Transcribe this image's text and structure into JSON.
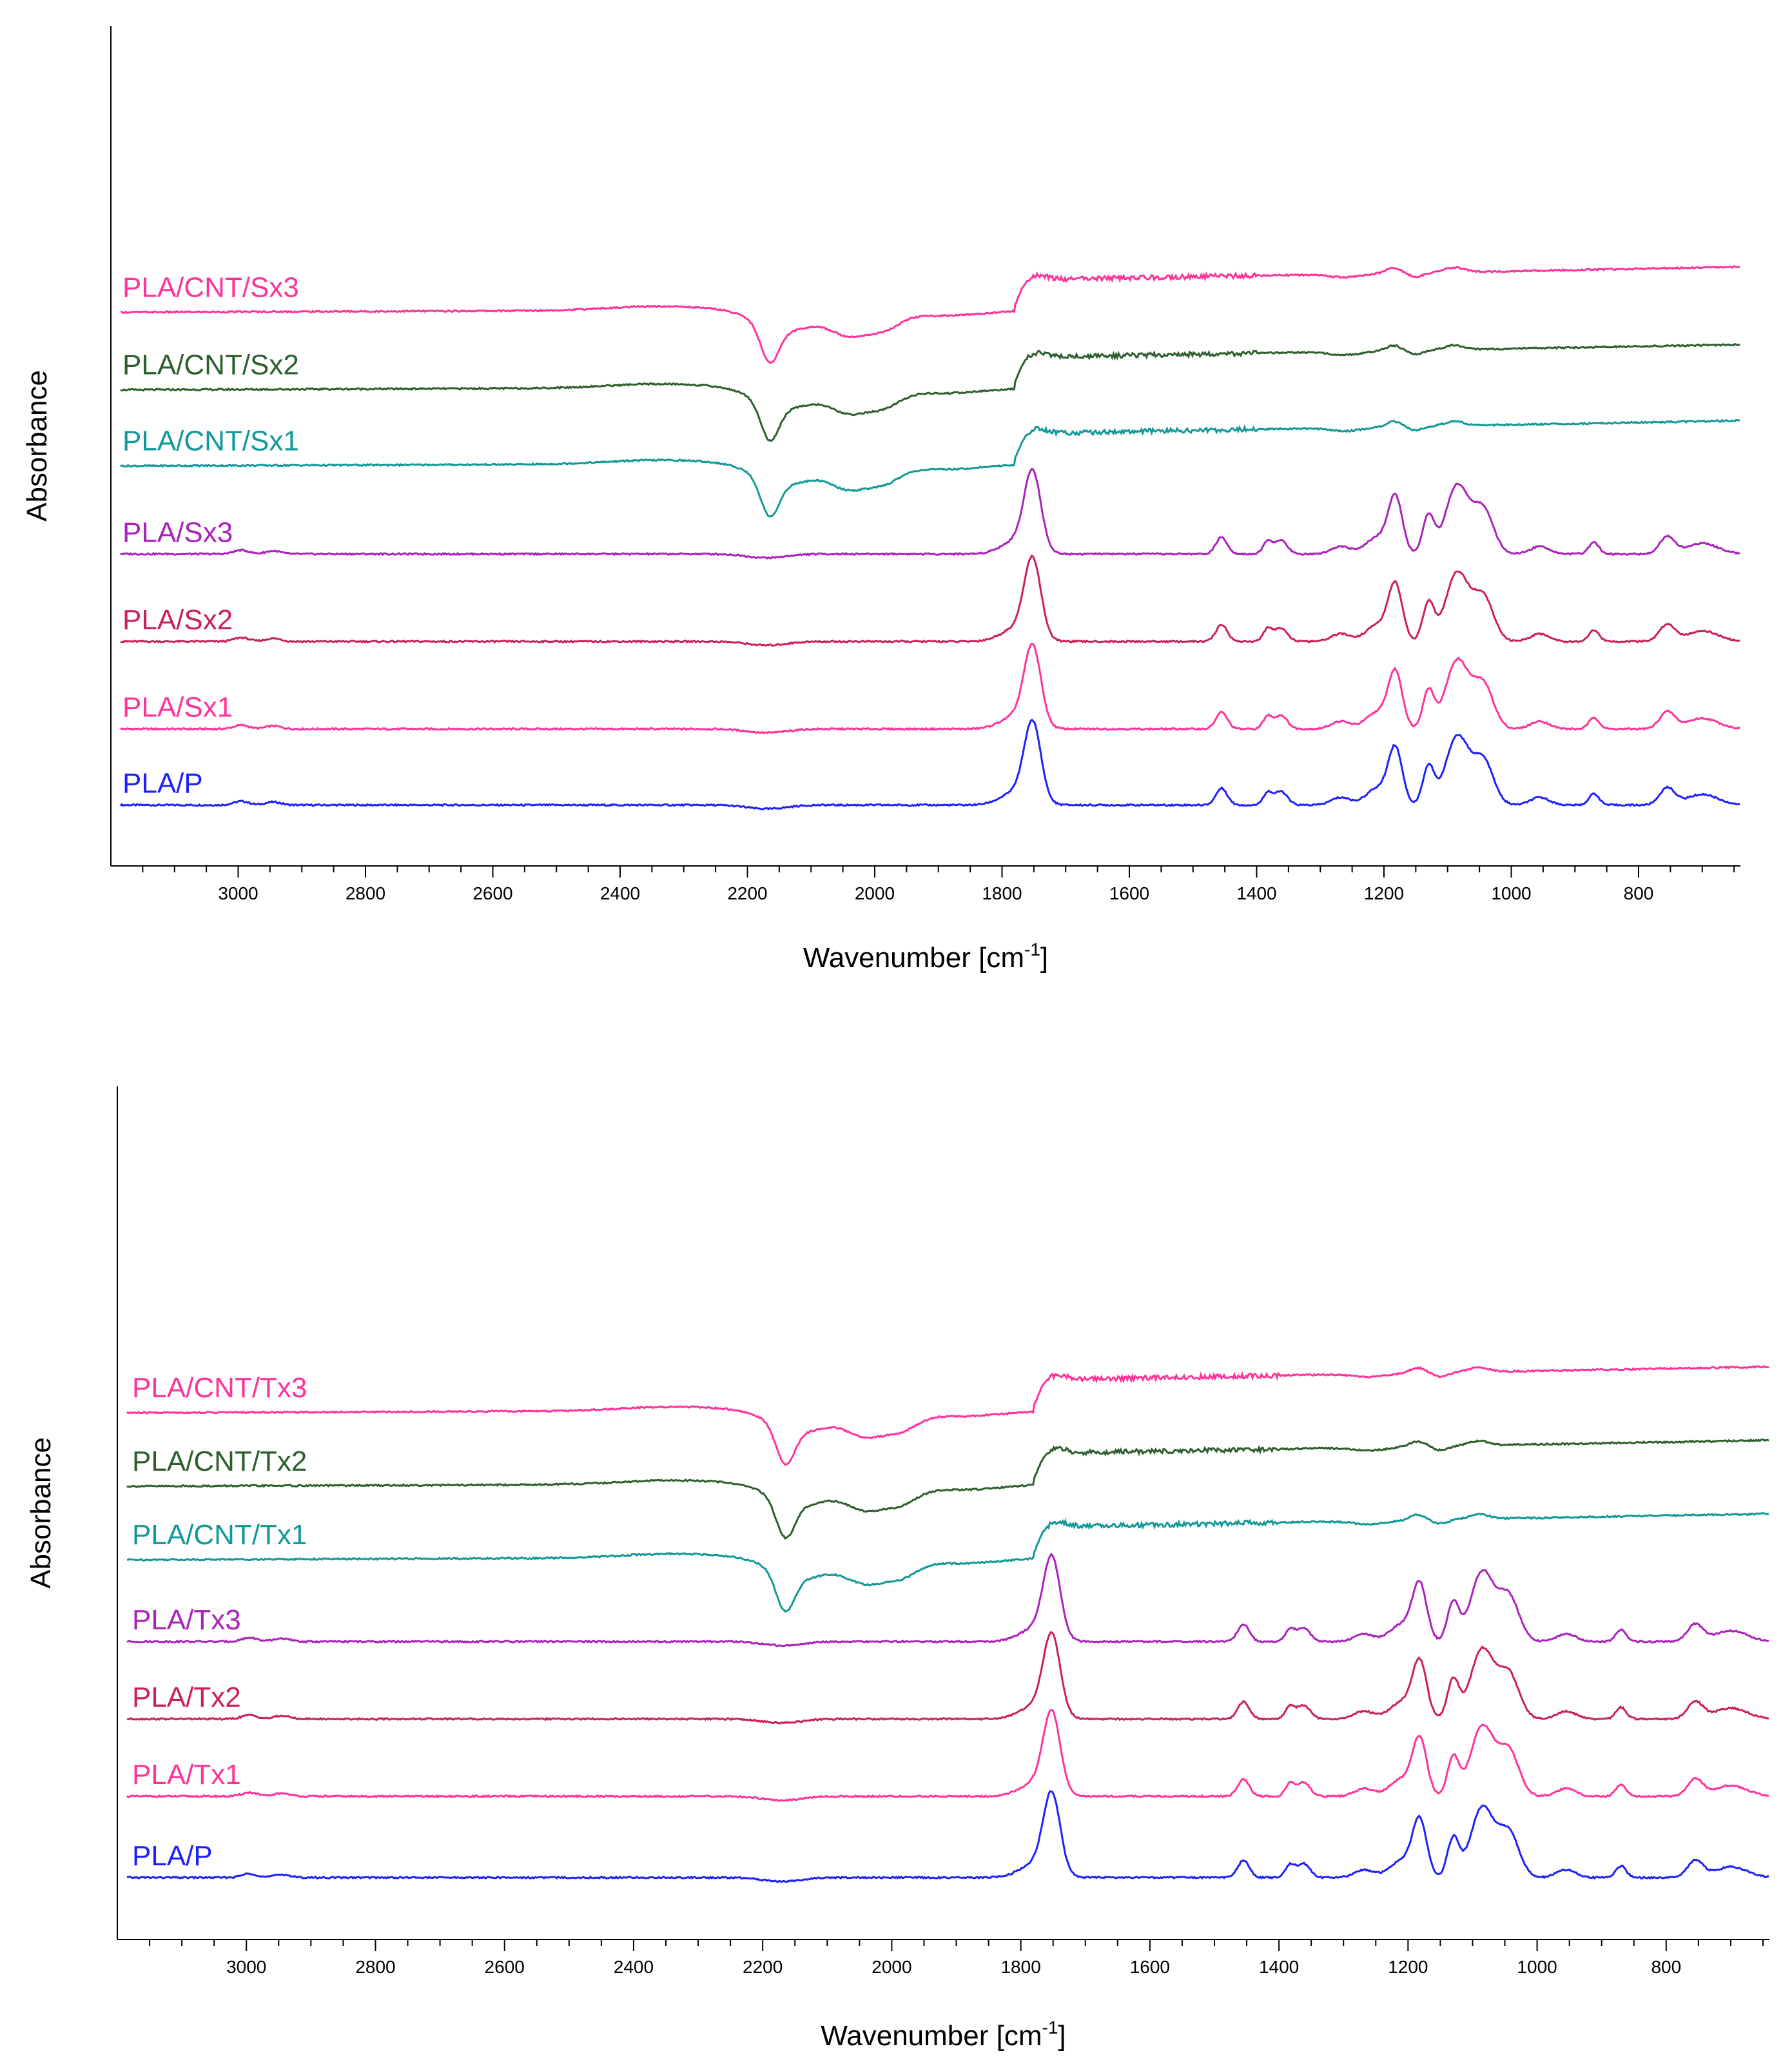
{
  "chart_data": [
    {
      "type": "line",
      "ylabel": "Absorbance",
      "xlabel": "Wavenumber [cm",
      "xlabel_sup": "-1",
      "xlabel_close": "]",
      "xlim": [
        3200,
        640
      ],
      "xticks": [
        3000,
        2800,
        2600,
        2400,
        2200,
        2000,
        1800,
        1600,
        1400,
        1200,
        1000,
        800
      ],
      "baselines": [
        0.8,
        1.8,
        2.95,
        4.1,
        5.3,
        6.3,
        7.32
      ],
      "series": [
        {
          "name": "PLA/P",
          "color": "#1f1fff",
          "kind": "neat"
        },
        {
          "name": "PLA/Sx1",
          "color": "#ff3399",
          "kind": "neat"
        },
        {
          "name": "PLA/Sx2",
          "color": "#cc1f5a",
          "kind": "neat"
        },
        {
          "name": "PLA/Sx3",
          "color": "#aa22bb",
          "kind": "neat"
        },
        {
          "name": "PLA/CNT/Sx1",
          "color": "#119999",
          "kind": "cnt"
        },
        {
          "name": "PLA/CNT/Sx2",
          "color": "#2d5e2d",
          "kind": "cnt"
        },
        {
          "name": "PLA/CNT/Sx3",
          "color": "#ff3399",
          "kind": "cnt"
        }
      ]
    },
    {
      "type": "line",
      "ylabel": "Absorbance",
      "xlabel": "Wavenumber [cm",
      "xlabel_sup": "-1",
      "xlabel_close": "]",
      "xlim": [
        3200,
        640
      ],
      "xticks": [
        3000,
        2800,
        2600,
        2400,
        2200,
        2000,
        1800,
        1600,
        1400,
        1200,
        1000,
        800
      ],
      "baselines": [
        0.8,
        1.85,
        2.85,
        3.85,
        4.95,
        5.9,
        6.85
      ],
      "series": [
        {
          "name": "PLA/P",
          "color": "#1f1fff",
          "kind": "neat"
        },
        {
          "name": "PLA/Tx1",
          "color": "#ff3399",
          "kind": "neat"
        },
        {
          "name": "PLA/Tx2",
          "color": "#cc1f5a",
          "kind": "neat"
        },
        {
          "name": "PLA/Tx3",
          "color": "#aa22bb",
          "kind": "neat"
        },
        {
          "name": "PLA/CNT/Tx1",
          "color": "#119999",
          "kind": "cnt"
        },
        {
          "name": "PLA/CNT/Tx2",
          "color": "#2d5e2d",
          "kind": "cnt"
        },
        {
          "name": "PLA/CNT/Tx3",
          "color": "#ff3399",
          "kind": "cnt"
        }
      ]
    }
  ]
}
